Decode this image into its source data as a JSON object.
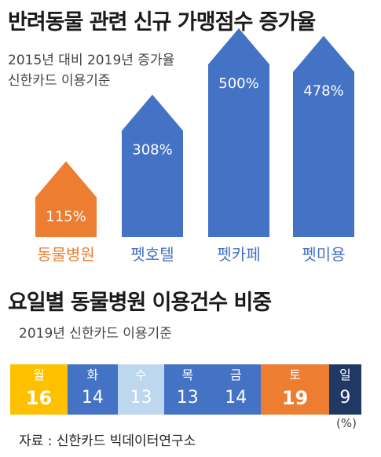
{
  "charts": [
    {
      "title": "반려동물 관련 신규 가맹점수 증가율",
      "subtitle_lines": [
        "2015년 대비 2019년 증가율",
        "신한카드 이용기준"
      ]
    },
    {
      "title": "요일별 동물병원 이용건수 비중",
      "subtitle": "2019년 신한카드 이용기준",
      "unit": "(%)"
    }
  ],
  "source": "자료 : 신한카드 빅데이터연구소",
  "chart_data": [
    {
      "type": "bar",
      "categories": [
        "동물병원",
        "펫호텔",
        "펫카페",
        "펫미용"
      ],
      "values": [
        115,
        308,
        500,
        478
      ],
      "data_labels": [
        "115%",
        "308%",
        "500%",
        "478%"
      ],
      "unit": "%",
      "colors": [
        "#ED7D31",
        "#4472C4",
        "#4472C4",
        "#4472C4"
      ],
      "category_label_colors": [
        "#ED7D31",
        "#4472C4",
        "#4472C4",
        "#4472C4"
      ],
      "bar_shape": "arrow-head",
      "ylim": [
        0,
        550
      ],
      "grid": false,
      "legend": "none"
    },
    {
      "type": "bar",
      "orientation": "stacked-horizontal",
      "categories": [
        "월",
        "화",
        "수",
        "목",
        "금",
        "토",
        "일"
      ],
      "values": [
        16,
        14,
        13,
        13,
        14,
        19,
        9
      ],
      "unit": "%",
      "colors": [
        "#FFC000",
        "#4472C4",
        "#BDD7EE",
        "#4472C4",
        "#4472C4",
        "#ED7D31",
        "#203864"
      ],
      "highlighted": [
        "월",
        "토"
      ],
      "grid": false,
      "legend": "none"
    }
  ]
}
